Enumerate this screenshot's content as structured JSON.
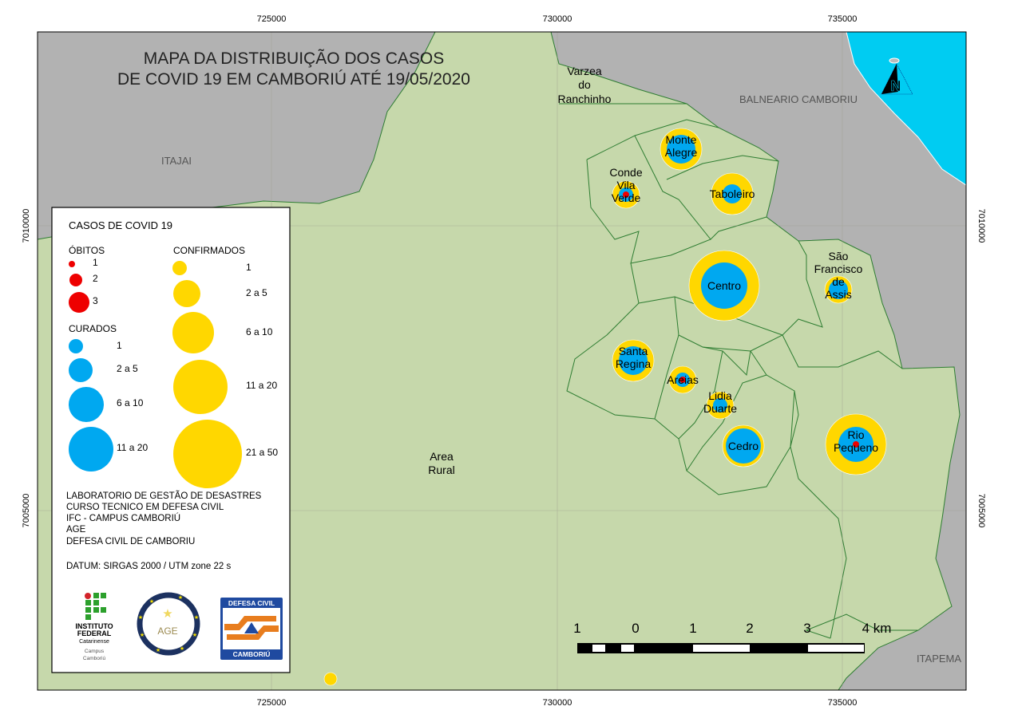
{
  "title": [
    "MAPA DA DISTRIBUIÇÃO DOS CASOS",
    "DE COVID 19 EM CAMBORIÚ ATÉ 19/05/2020"
  ],
  "grid": {
    "x_ticks": [
      "725000",
      "730000",
      "735000"
    ],
    "y_ticks": [
      "7010000",
      "7005000"
    ]
  },
  "regions": {
    "itajai": "ITAJAI",
    "balneario": "BALNEARIO CAMBORIU",
    "itapema": "ITAPEMA"
  },
  "places": {
    "varzea": [
      "Varzea",
      "do",
      "Ranchinho"
    ],
    "area_rural": [
      "Area",
      "Rural"
    ]
  },
  "neighborhoods": [
    {
      "name": [
        "Monte",
        "Alegre"
      ],
      "confirmados": "11 a 20",
      "curados": "6 a 10",
      "obitos": ""
    },
    {
      "name": [
        "Conde",
        "Vila",
        "Verde"
      ],
      "confirmados": "2 a 5",
      "curados": "1",
      "obitos": "1"
    },
    {
      "name": [
        "Taboleiro"
      ],
      "confirmados": "11 a 20",
      "curados": "2 a 5",
      "obitos": ""
    },
    {
      "name": [
        "Centro"
      ],
      "confirmados": "21 a 50",
      "curados": "11 a 20",
      "obitos": ""
    },
    {
      "name": [
        "São",
        "Francisco",
        "de",
        "Assis"
      ],
      "confirmados": "2 a 5",
      "curados": "2 a 5",
      "obitos": ""
    },
    {
      "name": [
        "Santa",
        "Regina"
      ],
      "confirmados": "11 a 20",
      "curados": "6 a 10",
      "obitos": ""
    },
    {
      "name": [
        "Areias"
      ],
      "confirmados": "2 a 5",
      "curados": "1",
      "obitos": "1"
    },
    {
      "name": [
        "Lidia",
        "Duarte"
      ],
      "confirmados": "2 a 5",
      "curados": "1",
      "obitos": ""
    },
    {
      "name": [
        "Cedro"
      ],
      "confirmados": "11 a 20",
      "curados": "11 a 20",
      "obitos": ""
    },
    {
      "name": [
        "Rio",
        "Pequeno"
      ],
      "confirmados": "21 a 50",
      "curados": "11 a 20",
      "obitos": "1"
    },
    {
      "name": [],
      "confirmados": "1",
      "curados": "",
      "obitos": ""
    }
  ],
  "legend": {
    "title": "CASOS DE COVID 19",
    "obitos": {
      "label": "ÓBITOS",
      "classes": [
        "1",
        "2",
        "3"
      ]
    },
    "curados": {
      "label": "CURADOS",
      "classes": [
        "1",
        "2 a 5",
        "6 a 10",
        "11 a 20"
      ]
    },
    "confirmados": {
      "label": "CONFIRMADOS",
      "classes": [
        "1",
        "2  a 5",
        "6 a 10",
        "11 a 20",
        "21 a 50"
      ]
    },
    "credits": [
      "LABORATORIO DE GESTÃO DE DESASTRES",
      "CURSO TECNICO EM DEFESA CIVIL",
      "IFC - CAMPUS CAMBORIÚ",
      "AGE",
      "DEFESA CIVIL DE CAMBORIU"
    ],
    "datum": "DATUM: SIRGAS 2000 / UTM zone 22 s",
    "logos": {
      "ifc": [
        "INSTITUTO",
        "FEDERAL",
        "Catarinense",
        "Campus",
        "Camboriú"
      ],
      "age": "AGE",
      "defesa": [
        "DEFESA CIVIL",
        "CAMBORIÚ"
      ]
    }
  },
  "scalebar": {
    "labels": [
      "1",
      "0",
      "1",
      "2",
      "3",
      "4 km"
    ]
  },
  "north_arrow": "N",
  "colors": {
    "land": "#c6d8ab",
    "outside": "#b2b2b2",
    "ocean": "#00ccf2",
    "border": "#2e7d32",
    "confirmados": "#ffd700",
    "curados": "#00a8f0",
    "obitos": "#ee0000"
  }
}
